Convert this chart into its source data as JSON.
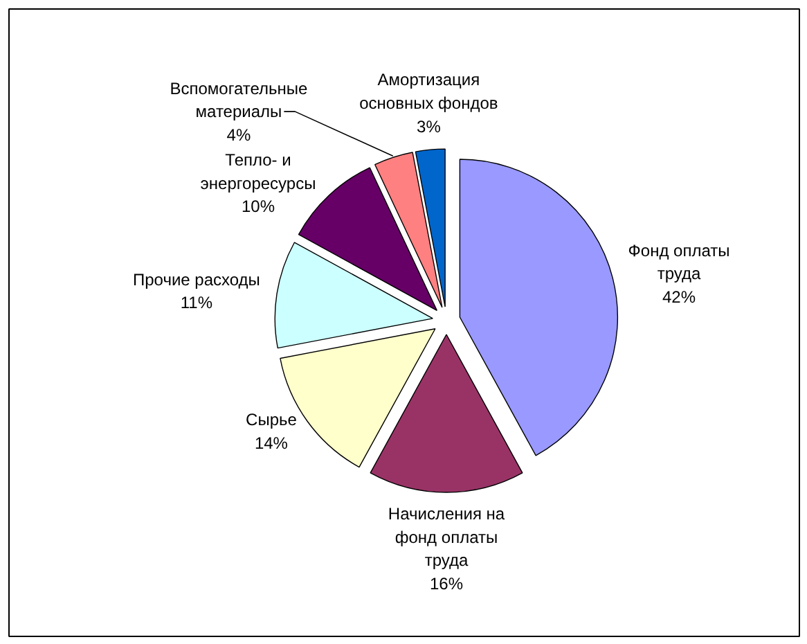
{
  "chart_data": {
    "type": "pie",
    "categories": [
      "Фонд оплаты\nтруда",
      "Начисления на\nфонд оплаты\nтруда",
      "Сырье",
      "Прочие расходы",
      "Тепло- и\nэнергоресурсы",
      "Вспомогательные\nматериалы",
      "Амортизация\nосновных фондов"
    ],
    "values": [
      42,
      16,
      14,
      11,
      10,
      4,
      3
    ],
    "colors": [
      "#9999ff",
      "#993366",
      "#ffffcc",
      "#ccffff",
      "#660066",
      "#ff8080",
      "#0066cc"
    ],
    "value_labels": [
      "42%",
      "16%",
      "14%",
      "11%",
      "10%",
      "4%",
      "3%"
    ]
  }
}
